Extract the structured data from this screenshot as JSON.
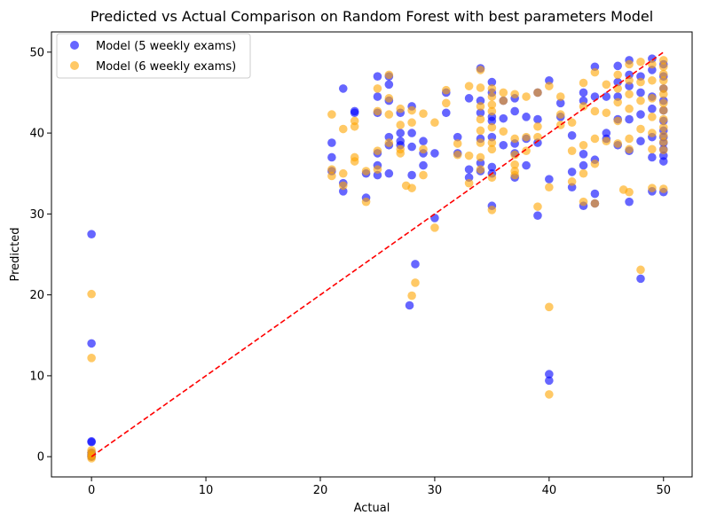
{
  "chart_data": {
    "type": "scatter",
    "title": "Predicted vs Actual Comparison on Random Forest with best parameters Model",
    "xlabel": "Actual",
    "ylabel": "Predicted",
    "xlim": [
      -3.5,
      52.5
    ],
    "ylim": [
      -2.5,
      52.5
    ],
    "xticks": [
      0,
      10,
      20,
      30,
      40,
      50
    ],
    "yticks": [
      0,
      10,
      20,
      30,
      40,
      50
    ],
    "grid": false,
    "legend_position": "top-left",
    "series": [
      {
        "name": "Model (5 weekly exams)",
        "color": "#0000ff",
        "opacity": 0.6,
        "points": [
          [
            0,
            27.5
          ],
          [
            0,
            14
          ],
          [
            0,
            1.9
          ],
          [
            0,
            1.8
          ],
          [
            0,
            0.5
          ],
          [
            0,
            0.3
          ],
          [
            0,
            0.1
          ],
          [
            0,
            0
          ],
          [
            21,
            38.8
          ],
          [
            21,
            37
          ],
          [
            21,
            35.3
          ],
          [
            22,
            45.5
          ],
          [
            22,
            33.8
          ],
          [
            22,
            32.8
          ],
          [
            23,
            42.7
          ],
          [
            23,
            42.5
          ],
          [
            24,
            32
          ],
          [
            24,
            35
          ],
          [
            25,
            47
          ],
          [
            25,
            44.5
          ],
          [
            25,
            42.5
          ],
          [
            25,
            37.5
          ],
          [
            25,
            36
          ],
          [
            25,
            34.8
          ],
          [
            26,
            47
          ],
          [
            26,
            46
          ],
          [
            26,
            44
          ],
          [
            26,
            39.5
          ],
          [
            26,
            38.5
          ],
          [
            26,
            35
          ],
          [
            27,
            42.5
          ],
          [
            27,
            40
          ],
          [
            27,
            39
          ],
          [
            27,
            38.5
          ],
          [
            28,
            43.3
          ],
          [
            28,
            40
          ],
          [
            28,
            38.3
          ],
          [
            28,
            34.8
          ],
          [
            27.8,
            18.7
          ],
          [
            28.3,
            23.8
          ],
          [
            29,
            39
          ],
          [
            29,
            37.5
          ],
          [
            29,
            36
          ],
          [
            30,
            37.5
          ],
          [
            30,
            29.5
          ],
          [
            31,
            45
          ],
          [
            31,
            42.5
          ],
          [
            32,
            39.5
          ],
          [
            32,
            37.5
          ],
          [
            33,
            44.3
          ],
          [
            33,
            35.5
          ],
          [
            33,
            34.5
          ],
          [
            34,
            48
          ],
          [
            34,
            44
          ],
          [
            34,
            42.5
          ],
          [
            34,
            39.3
          ],
          [
            34,
            36.3
          ],
          [
            34,
            35.3
          ],
          [
            35,
            46.3
          ],
          [
            35,
            45
          ],
          [
            35,
            42
          ],
          [
            35,
            41.5
          ],
          [
            35,
            39.5
          ],
          [
            35,
            35.8
          ],
          [
            35,
            35
          ],
          [
            35,
            31
          ],
          [
            36,
            44
          ],
          [
            36,
            41.8
          ],
          [
            36,
            38.5
          ],
          [
            37,
            44.3
          ],
          [
            37,
            42.7
          ],
          [
            37,
            38.7
          ],
          [
            37,
            37.5
          ],
          [
            37,
            34.5
          ],
          [
            38,
            42
          ],
          [
            38,
            39.3
          ],
          [
            38,
            36
          ],
          [
            39,
            45
          ],
          [
            39,
            41.7
          ],
          [
            39,
            38.8
          ],
          [
            39,
            29.8
          ],
          [
            40,
            46.5
          ],
          [
            40,
            34.3
          ],
          [
            40,
            10.2
          ],
          [
            40,
            9.4
          ],
          [
            41,
            43.7
          ],
          [
            41,
            42
          ],
          [
            42,
            39.7
          ],
          [
            42,
            35.2
          ],
          [
            42,
            33.3
          ],
          [
            43,
            45
          ],
          [
            43,
            44
          ],
          [
            43,
            37.4
          ],
          [
            43,
            36
          ],
          [
            43,
            31
          ],
          [
            44,
            48.2
          ],
          [
            44,
            44.5
          ],
          [
            44,
            36.7
          ],
          [
            44,
            32.5
          ],
          [
            44,
            31.3
          ],
          [
            45,
            44.5
          ],
          [
            45,
            40
          ],
          [
            45,
            39.3
          ],
          [
            46,
            48.3
          ],
          [
            46,
            46.3
          ],
          [
            46,
            44.5
          ],
          [
            46,
            41.7
          ],
          [
            46,
            38.5
          ],
          [
            47,
            49
          ],
          [
            47,
            47.2
          ],
          [
            47,
            45.8
          ],
          [
            47,
            41.7
          ],
          [
            47,
            37.8
          ],
          [
            47,
            31.5
          ],
          [
            48,
            47
          ],
          [
            48,
            45
          ],
          [
            48,
            42.3
          ],
          [
            48,
            39
          ],
          [
            48,
            22
          ],
          [
            49,
            49.2
          ],
          [
            49,
            47.8
          ],
          [
            49,
            44.5
          ],
          [
            49,
            43
          ],
          [
            49,
            39.5
          ],
          [
            49,
            37
          ],
          [
            49,
            32.8
          ],
          [
            50,
            48.5
          ],
          [
            50,
            47
          ],
          [
            50,
            45.5
          ],
          [
            50,
            44
          ],
          [
            50,
            42.8
          ],
          [
            50,
            41.5
          ],
          [
            50,
            40.3
          ],
          [
            50,
            39.5
          ],
          [
            50,
            38.8
          ],
          [
            50,
            38
          ],
          [
            50,
            37.2
          ],
          [
            50,
            36.5
          ],
          [
            50,
            32.7
          ]
        ]
      },
      {
        "name": "Model (6 weekly exams)",
        "color": "#ffa500",
        "opacity": 0.6,
        "points": [
          [
            0,
            20.1
          ],
          [
            0,
            12.2
          ],
          [
            0,
            0.8
          ],
          [
            0,
            0.5
          ],
          [
            0,
            0.2
          ],
          [
            0,
            0
          ],
          [
            0,
            -0.2
          ],
          [
            21,
            42.3
          ],
          [
            21,
            35.5
          ],
          [
            21,
            34.7
          ],
          [
            22,
            40.5
          ],
          [
            22,
            35
          ],
          [
            22,
            33.5
          ],
          [
            23,
            41.5
          ],
          [
            23,
            40.8
          ],
          [
            23,
            37
          ],
          [
            23,
            36.5
          ],
          [
            24,
            35.3
          ],
          [
            24,
            31.5
          ],
          [
            25,
            45.5
          ],
          [
            25,
            42.7
          ],
          [
            25,
            37.8
          ],
          [
            25,
            35.5
          ],
          [
            26,
            47.2
          ],
          [
            26,
            44.3
          ],
          [
            26,
            42.3
          ],
          [
            26,
            38.8
          ],
          [
            27,
            43
          ],
          [
            27,
            41
          ],
          [
            27,
            38
          ],
          [
            27,
            37.5
          ],
          [
            27.5,
            33.5
          ],
          [
            28,
            42.8
          ],
          [
            28,
            41.3
          ],
          [
            28,
            33.2
          ],
          [
            28,
            19.9
          ],
          [
            28.3,
            21.5
          ],
          [
            29,
            42.4
          ],
          [
            29,
            38
          ],
          [
            29,
            34.8
          ],
          [
            30,
            41.3
          ],
          [
            30,
            28.3
          ],
          [
            31,
            45.3
          ],
          [
            31,
            43.7
          ],
          [
            32,
            38.7
          ],
          [
            32,
            37.3
          ],
          [
            33,
            45.8
          ],
          [
            33,
            37.2
          ],
          [
            33,
            33.8
          ],
          [
            34,
            47.8
          ],
          [
            34,
            45.6
          ],
          [
            34,
            43.3
          ],
          [
            34,
            41.7
          ],
          [
            34,
            40.3
          ],
          [
            34,
            38.8
          ],
          [
            34,
            37
          ],
          [
            34,
            35.5
          ],
          [
            35,
            45.5
          ],
          [
            35,
            44.5
          ],
          [
            35,
            43.5
          ],
          [
            35,
            42.7
          ],
          [
            35,
            40.7
          ],
          [
            35,
            38.8
          ],
          [
            35,
            38
          ],
          [
            35,
            34.5
          ],
          [
            35,
            30.5
          ],
          [
            36,
            45
          ],
          [
            36,
            44
          ],
          [
            36,
            40.2
          ],
          [
            37,
            44.8
          ],
          [
            37,
            39.3
          ],
          [
            37,
            37.3
          ],
          [
            37,
            36.1
          ],
          [
            37,
            35.3
          ],
          [
            37,
            34.8
          ],
          [
            38,
            44.5
          ],
          [
            38,
            39.5
          ],
          [
            38,
            37.8
          ],
          [
            39,
            45
          ],
          [
            39,
            40.8
          ],
          [
            39,
            39.5
          ],
          [
            39,
            30.9
          ],
          [
            40,
            45.8
          ],
          [
            40,
            33.3
          ],
          [
            40,
            18.5
          ],
          [
            40,
            7.7
          ],
          [
            41,
            44.5
          ],
          [
            41,
            42.3
          ],
          [
            41,
            41
          ],
          [
            42,
            41.3
          ],
          [
            42,
            37.8
          ],
          [
            42,
            34
          ],
          [
            43,
            46.2
          ],
          [
            43,
            43.3
          ],
          [
            43,
            38.5
          ],
          [
            43,
            35
          ],
          [
            43,
            31.5
          ],
          [
            44,
            47.5
          ],
          [
            44,
            42.7
          ],
          [
            44,
            39.3
          ],
          [
            44,
            36.2
          ],
          [
            44,
            31.3
          ],
          [
            45,
            46
          ],
          [
            45,
            42.5
          ],
          [
            45,
            39
          ],
          [
            46,
            47.2
          ],
          [
            46,
            45.5
          ],
          [
            46,
            43.8
          ],
          [
            46,
            41.5
          ],
          [
            46,
            38.7
          ],
          [
            46.5,
            33
          ],
          [
            47,
            48.5
          ],
          [
            47,
            46.5
          ],
          [
            47,
            44.8
          ],
          [
            47,
            43
          ],
          [
            47,
            39.3
          ],
          [
            47,
            38
          ],
          [
            47,
            32.7
          ],
          [
            48,
            48.8
          ],
          [
            48,
            46.3
          ],
          [
            48,
            44
          ],
          [
            48,
            40.5
          ],
          [
            48,
            23.1
          ],
          [
            49,
            48.5
          ],
          [
            49,
            46.5
          ],
          [
            49,
            44.3
          ],
          [
            49,
            42
          ],
          [
            49,
            40
          ],
          [
            49,
            38
          ],
          [
            49,
            33.2
          ],
          [
            50,
            49
          ],
          [
            50,
            48.2
          ],
          [
            50,
            47.3
          ],
          [
            50,
            46.5
          ],
          [
            50,
            45.5
          ],
          [
            50,
            44.8
          ],
          [
            50,
            43.7
          ],
          [
            50,
            42.8
          ],
          [
            50,
            41.7
          ],
          [
            50,
            40.7
          ],
          [
            50,
            39.7
          ],
          [
            50,
            38.9
          ],
          [
            50,
            37.9
          ],
          [
            50,
            33.1
          ]
        ]
      },
      {
        "name": "",
        "type": "line",
        "style": "dashed",
        "color": "#ff0000",
        "points": [
          [
            0,
            0
          ],
          [
            50,
            50
          ]
        ]
      }
    ]
  }
}
